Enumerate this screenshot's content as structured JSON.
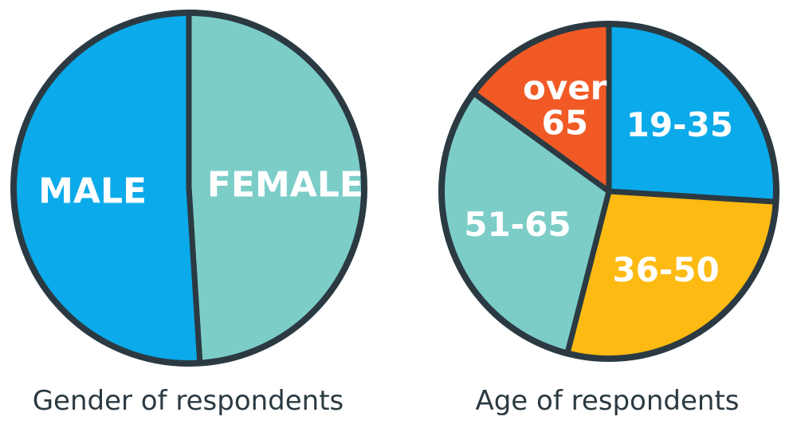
{
  "chart_data": [
    {
      "type": "pie",
      "title": "Gender of respondents",
      "slices": [
        {
          "label": "FEMALE",
          "value": 49,
          "color": "#7ccdc8"
        },
        {
          "label": "MALE",
          "value": 51,
          "color": "#0baaea"
        }
      ],
      "start": "top",
      "direction": "clockwise",
      "legend": "none"
    },
    {
      "type": "pie",
      "title": "Age of respondents",
      "slices": [
        {
          "label": "19-35",
          "value": 26,
          "color": "#0baaea"
        },
        {
          "label": "36-50",
          "value": 28,
          "color": "#fcba12"
        },
        {
          "label": "51-65",
          "value": 31,
          "color": "#7ccdc8"
        },
        {
          "label": "over 65",
          "value": 15,
          "color": "#f15a25"
        }
      ],
      "start": "top",
      "direction": "clockwise",
      "legend": "none"
    }
  ],
  "colors": {
    "outline": "#2b3a42",
    "label_text": "#ffffff",
    "title_text": "#2b3a42"
  }
}
